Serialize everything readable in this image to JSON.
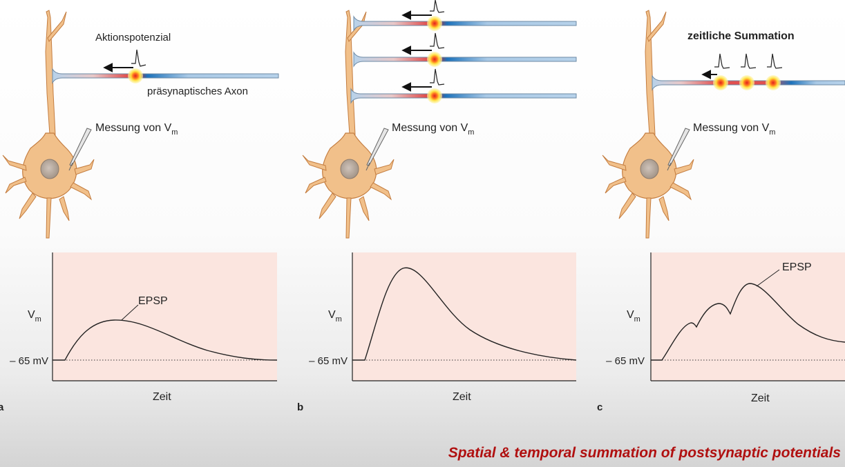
{
  "colors": {
    "neuron": "#f1c08a",
    "neuron_outline": "#c47d40",
    "nucleus": "#b9aba0",
    "plot_background": "#fbe5df",
    "axon_blue": "#a9c9e6",
    "axon_dark_blue": "#1c72bb",
    "axon_red": "#cc2222",
    "spike_yellow": "#ffe040",
    "caption": "#b01010"
  },
  "panels": [
    {
      "letter": "a",
      "top_label": "Aktionspotenzial",
      "axon_label": "präsynaptisches Axon",
      "measure_label": "Messung von V",
      "measure_sub": "m",
      "y_label": "V",
      "y_sub": "m",
      "baseline_label": "– 65 mV",
      "x_label": "Zeit",
      "curve_label": "EPSP"
    },
    {
      "letter": "b",
      "measure_label": "Messung von V",
      "measure_sub": "m",
      "y_label": "V",
      "y_sub": "m",
      "baseline_label": "– 65 mV",
      "x_label": "Zeit"
    },
    {
      "letter": "c",
      "top_label": "zeitliche Summation",
      "measure_label": "Messung von V",
      "measure_sub": "m",
      "y_label": "V",
      "y_sub": "m",
      "baseline_label": "– 65 mV",
      "x_label": "Zeit",
      "curve_label": "EPSP"
    }
  ],
  "caption": "Spatial & temporal summation of postsynaptic potentials"
}
